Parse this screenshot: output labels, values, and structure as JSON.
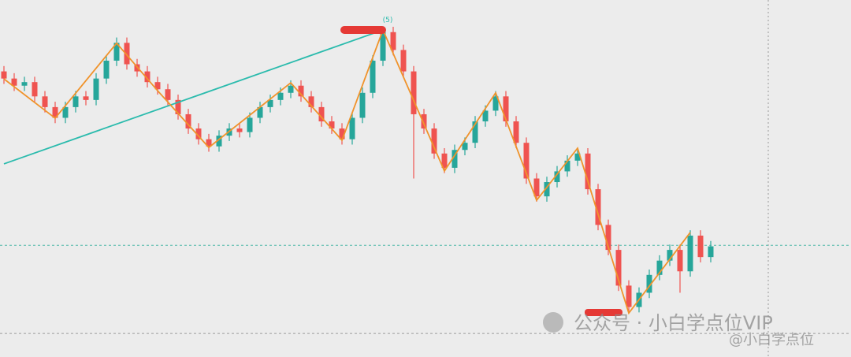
{
  "chart_data": {
    "type": "candlestick",
    "ylim": [
      0,
      100
    ],
    "up_color": "#26a69a",
    "down_color": "#ef5350",
    "candles": [
      [
        80,
        81.5,
        76.5,
        78
      ],
      [
        78,
        79.5,
        74.5,
        76
      ],
      [
        76,
        78.5,
        74.5,
        77
      ],
      [
        77,
        78.5,
        71.5,
        73
      ],
      [
        73,
        74.5,
        68.5,
        70
      ],
      [
        70,
        71.5,
        65.5,
        67
      ],
      [
        67,
        71.5,
        65.5,
        70
      ],
      [
        70,
        74.5,
        68.5,
        73
      ],
      [
        73,
        74.5,
        70.5,
        72
      ],
      [
        72,
        79.5,
        70.5,
        78
      ],
      [
        78,
        84.5,
        76.5,
        83
      ],
      [
        83,
        89.5,
        81.5,
        88
      ],
      [
        88,
        89.5,
        80.5,
        82
      ],
      [
        82,
        83.5,
        78.5,
        80
      ],
      [
        80,
        81.5,
        75.5,
        77
      ],
      [
        77,
        78.5,
        73.5,
        75
      ],
      [
        75,
        76.5,
        70.5,
        72
      ],
      [
        72,
        73.5,
        66.5,
        68
      ],
      [
        68,
        69.5,
        62.5,
        64
      ],
      [
        64,
        65.5,
        59.5,
        61
      ],
      [
        61,
        62.5,
        57.5,
        59
      ],
      [
        59,
        63.5,
        57.5,
        62
      ],
      [
        62,
        65.5,
        60.5,
        64
      ],
      [
        64,
        65.5,
        61.5,
        63
      ],
      [
        63,
        68.5,
        61.5,
        67
      ],
      [
        67,
        71.5,
        65.5,
        70
      ],
      [
        70,
        73.5,
        68.5,
        72
      ],
      [
        72,
        75.5,
        70.5,
        74
      ],
      [
        74,
        77.5,
        72.5,
        76
      ],
      [
        76,
        77.5,
        71.5,
        73
      ],
      [
        73,
        74.5,
        68.5,
        70
      ],
      [
        70,
        71.5,
        64.5,
        66
      ],
      [
        66,
        67.5,
        62.5,
        64
      ],
      [
        64,
        65.5,
        59.5,
        61
      ],
      [
        61,
        68.5,
        59.5,
        67
      ],
      [
        67,
        75.5,
        65.5,
        74
      ],
      [
        74,
        84.5,
        72.5,
        83
      ],
      [
        83,
        92.5,
        81.5,
        91
      ],
      [
        91,
        92.5,
        84.5,
        86
      ],
      [
        86,
        87.5,
        78.5,
        80
      ],
      [
        80,
        81.5,
        50,
        68
      ],
      [
        68,
        69.5,
        62.5,
        64
      ],
      [
        64,
        65.5,
        55.5,
        57
      ],
      [
        57,
        58.5,
        51.5,
        53
      ],
      [
        53,
        59.5,
        51.5,
        58
      ],
      [
        58,
        61.5,
        56.5,
        60
      ],
      [
        60,
        67.5,
        58.5,
        66
      ],
      [
        66,
        70.5,
        64.5,
        69
      ],
      [
        69,
        74.5,
        67.5,
        73
      ],
      [
        73,
        74.5,
        64.5,
        66
      ],
      [
        66,
        67.5,
        58.5,
        60
      ],
      [
        60,
        61.5,
        48.5,
        50
      ],
      [
        50,
        51.5,
        43.5,
        45
      ],
      [
        45,
        50.5,
        43.5,
        49
      ],
      [
        49,
        53.5,
        47.5,
        52
      ],
      [
        52,
        56.5,
        50.5,
        55
      ],
      [
        55,
        58.5,
        53.5,
        57
      ],
      [
        57,
        58.5,
        45.5,
        47
      ],
      [
        47,
        48.5,
        35.5,
        37
      ],
      [
        37,
        38.5,
        28.5,
        30
      ],
      [
        30,
        31.5,
        18.5,
        20
      ],
      [
        20,
        21.5,
        12.5,
        14
      ],
      [
        14,
        19.5,
        12.5,
        18
      ],
      [
        18,
        24.5,
        16.5,
        23
      ],
      [
        23,
        28.5,
        21.5,
        27
      ],
      [
        27,
        31.5,
        25.5,
        30
      ],
      [
        30,
        31.5,
        18,
        24
      ],
      [
        24,
        35.5,
        22.5,
        34
      ],
      [
        34,
        35.5,
        26.5,
        28
      ],
      [
        28,
        32.5,
        26.5,
        31
      ]
    ],
    "zigzag": {
      "color": "#f0932b",
      "x": [
        0,
        5,
        11,
        15,
        20,
        28,
        33,
        37,
        43,
        48,
        52,
        56,
        61,
        67
      ],
      "values": [
        77.9,
        66.9,
        87.9,
        74.6,
        58.7,
        76.8,
        60.7,
        91.6,
        52.1,
        74.0,
        43.9,
        58.5,
        12.3,
        34.9
      ]
    },
    "trendline": {
      "color": "#2bbbad",
      "x": [
        0,
        37
      ],
      "values": [
        54.1,
        91.6
      ]
    },
    "levels": [
      {
        "value": 31.3,
        "color": "#4fb8a8"
      },
      {
        "value": 6.6,
        "color": "#9a9a9a"
      }
    ],
    "annotation": "(5)",
    "watermark": "公众号 · 小白学点位VIP",
    "watermark_handle": "@小白学点位"
  }
}
